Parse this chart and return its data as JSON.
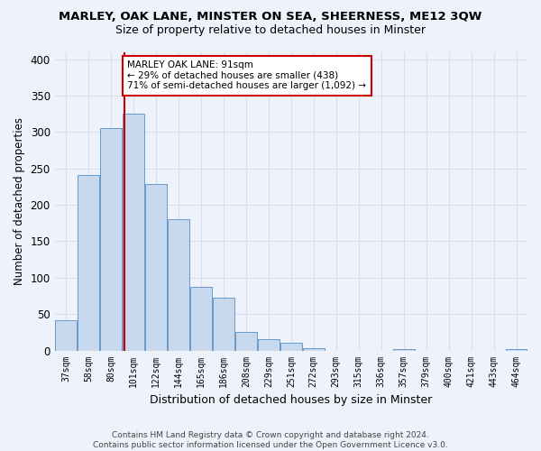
{
  "title": "MARLEY, OAK LANE, MINSTER ON SEA, SHEERNESS, ME12 3QW",
  "subtitle": "Size of property relative to detached houses in Minster",
  "xlabel": "Distribution of detached houses by size in Minster",
  "ylabel": "Number of detached properties",
  "bar_labels": [
    "37sqm",
    "58sqm",
    "80sqm",
    "101sqm",
    "122sqm",
    "144sqm",
    "165sqm",
    "186sqm",
    "208sqm",
    "229sqm",
    "251sqm",
    "272sqm",
    "293sqm",
    "315sqm",
    "336sqm",
    "357sqm",
    "379sqm",
    "400sqm",
    "421sqm",
    "443sqm",
    "464sqm"
  ],
  "bar_values": [
    42,
    241,
    305,
    325,
    228,
    180,
    87,
    73,
    25,
    15,
    10,
    3,
    0,
    0,
    0,
    2,
    0,
    0,
    0,
    0,
    2
  ],
  "bar_color": "#c8d9ee",
  "bar_edge_color": "#6699cc",
  "vline_color": "#cc0000",
  "annotation_text": "MARLEY OAK LANE: 91sqm\n← 29% of detached houses are smaller (438)\n71% of semi-detached houses are larger (1,092) →",
  "annotation_box_color": "#ffffff",
  "annotation_box_edge_color": "#cc0000",
  "ylim": [
    0,
    410
  ],
  "yticks": [
    0,
    50,
    100,
    150,
    200,
    250,
    300,
    350,
    400
  ],
  "footer1": "Contains HM Land Registry data © Crown copyright and database right 2024.",
  "footer2": "Contains public sector information licensed under the Open Government Licence v3.0.",
  "background_color": "#eef2fb",
  "grid_color": "#d8dff0",
  "title_fontsize": 9.5,
  "subtitle_fontsize": 9.0,
  "vline_index": 2.58
}
